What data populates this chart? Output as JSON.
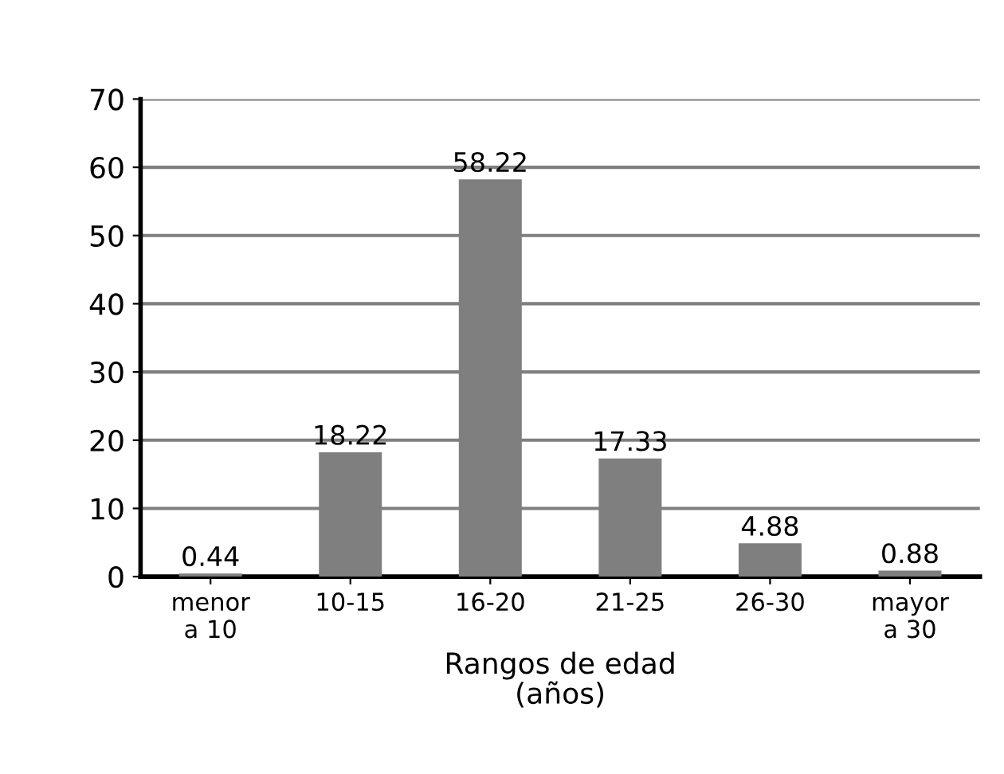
{
  "chart_data": {
    "type": "bar",
    "xlabel": "Rangos de edad\n(años)",
    "categories": [
      "menor\na 10",
      "10-15",
      "16-20",
      "21-25",
      "26-30",
      "mayor\na 30"
    ],
    "values": [
      0.44,
      18.22,
      58.22,
      17.33,
      4.88,
      0.88
    ],
    "color": "#7f7f7f",
    "ylim": [
      0,
      70
    ],
    "yticks": [
      0,
      10,
      20,
      30,
      40,
      50,
      60,
      70
    ],
    "grid": "y",
    "data_labels": true
  }
}
